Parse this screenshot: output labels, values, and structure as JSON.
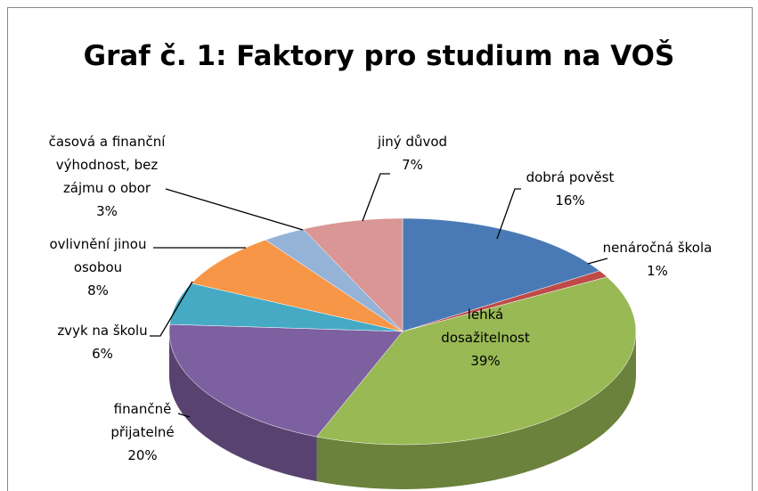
{
  "chart_data": {
    "type": "pie",
    "title": "Graf č. 1: Faktory pro studium na VOŠ",
    "categories": [
      "dobrá pověst",
      "nenáročná škola",
      "lehká dosažitelnost",
      "finančně přijatelné",
      "zvyk na školu",
      "ovlivnění jinou osobou",
      "časová a finanční výhodnost, bez zájmu o obor",
      "jiný důvod"
    ],
    "values": [
      16,
      1,
      39,
      20,
      6,
      8,
      3,
      7
    ],
    "value_labels": [
      "16%",
      "1%",
      "39%",
      "20%",
      "6%",
      "8%",
      "3%",
      "7%"
    ],
    "colors": [
      "#4a7ab5",
      "#be4b48",
      "#98b954",
      "#7d60a0",
      "#46aac5",
      "#f79646",
      "#95b3d7",
      "#d99694"
    ]
  }
}
